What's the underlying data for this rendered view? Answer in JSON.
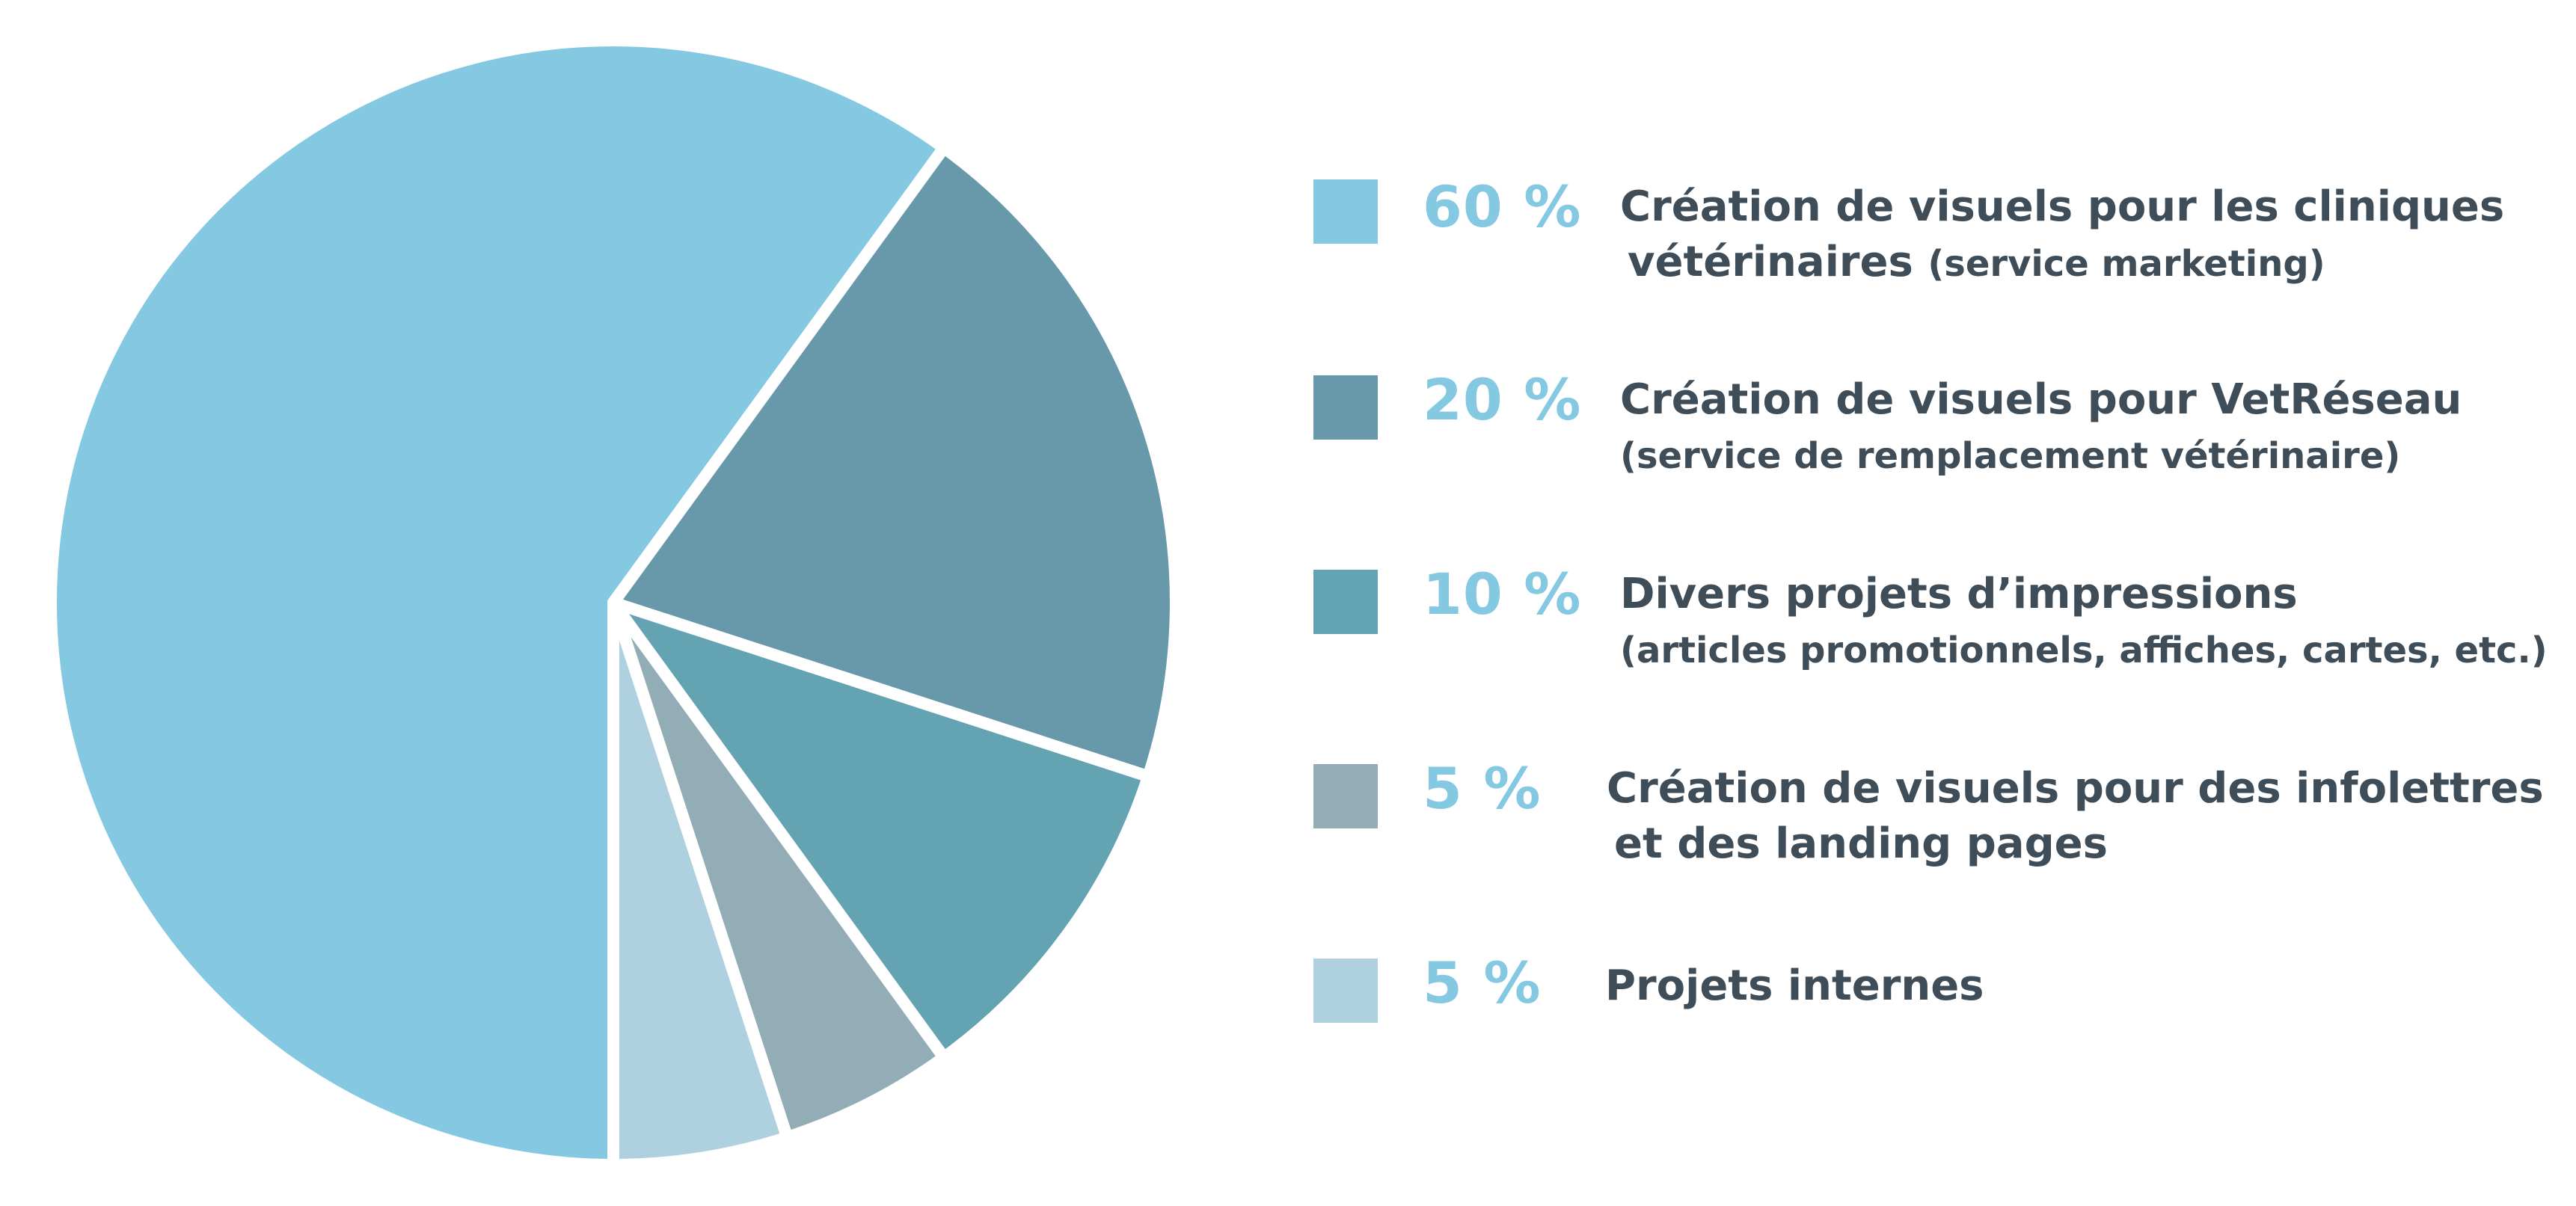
{
  "chart_data": {
    "type": "pie",
    "slices": [
      {
        "value": 60,
        "percent_label": "60 %",
        "label_line1": "Création de visuels pour les cliniques",
        "label_line2_main": "vétérinaires",
        "label_line2_note": "(service marketing)",
        "color": "#84c8e2"
      },
      {
        "value": 20,
        "percent_label": "20 %",
        "label_line1": "Création de visuels pour VetRéseau",
        "label_line2_main": "",
        "label_line2_note": "(service de remplacement vétérinaire)",
        "color": "#6899ab"
      },
      {
        "value": 10,
        "percent_label": "10 %",
        "label_line1": "Divers projets d’impressions",
        "label_line2_main": "",
        "label_line2_note": "(articles promotionnels, affiches, cartes, etc.)",
        "color": "#63a3b2"
      },
      {
        "value": 5,
        "percent_label": "5 %",
        "label_line1": "Création de visuels pour des infolettres",
        "label_line2_main": "et des landing pages",
        "label_line2_note": "",
        "color": "#92adb5"
      },
      {
        "value": 5,
        "percent_label": "5 %",
        "label_line1": "Projets internes",
        "label_line2_main": "",
        "label_line2_note": "",
        "color": "#afd0df"
      }
    ],
    "legend_placement": "right"
  }
}
